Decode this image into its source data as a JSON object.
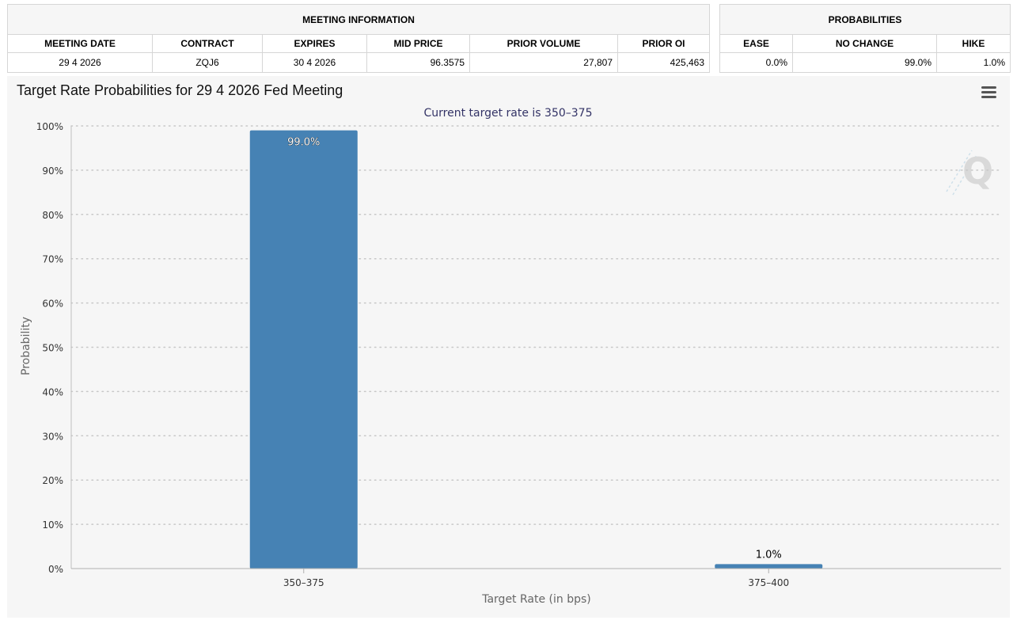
{
  "meeting_info": {
    "caption": "MEETING INFORMATION",
    "headers": [
      "MEETING DATE",
      "CONTRACT",
      "EXPIRES",
      "MID PRICE",
      "PRIOR VOLUME",
      "PRIOR OI"
    ],
    "values": [
      "29 4 2026",
      "ZQJ6",
      "30 4 2026",
      "96.3575",
      "27,807",
      "425,463"
    ]
  },
  "probabilities": {
    "caption": "PROBABILITIES",
    "headers": [
      "EASE",
      "NO CHANGE",
      "HIKE"
    ],
    "values": [
      "0.0%",
      "99.0%",
      "1.0%"
    ]
  },
  "chart_data": {
    "type": "bar",
    "title": "Target Rate Probabilities for 29 4 2026 Fed Meeting",
    "subtitle": "Current target rate is 350–375",
    "xlabel": "Target Rate (in bps)",
    "ylabel": "Probability",
    "categories": [
      "350–375",
      "375–400"
    ],
    "values": [
      99.0,
      1.0
    ],
    "data_labels": [
      "99.0%",
      "1.0%"
    ],
    "ylim": [
      0,
      100
    ],
    "yticks": [
      0,
      10,
      20,
      30,
      40,
      50,
      60,
      70,
      80,
      90,
      100
    ],
    "ytick_suffix": "%",
    "grid": "dotted-horizontal",
    "legend": "none",
    "bar_color": "#4682b4",
    "watermark": "Q"
  }
}
